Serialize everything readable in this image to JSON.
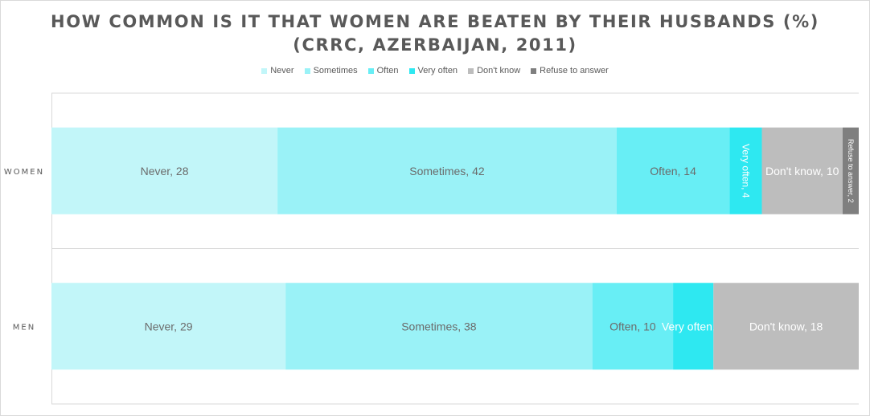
{
  "chart_data": {
    "type": "bar",
    "orientation": "horizontal",
    "stacked": true,
    "title_lines": [
      "HOW COMMON IS IT THAT WOMEN ARE BEATEN BY THEIR HUSBANDS (%)",
      "(CRRC, AZERBAIJAN, 2011)"
    ],
    "categories": [
      "WOMEN",
      "MEN"
    ],
    "series": [
      {
        "name": "Never",
        "color": "#c2f6f9",
        "values": [
          28,
          29
        ],
        "data_labels": [
          "Never, 28",
          "Never, 29"
        ]
      },
      {
        "name": "Sometimes",
        "color": "#9af2f7",
        "values": [
          42,
          38
        ],
        "data_labels": [
          "Sometimes, 42",
          "Sometimes, 38"
        ]
      },
      {
        "name": "Often",
        "color": "#68eef5",
        "values": [
          14,
          10
        ],
        "data_labels": [
          "Often, 14",
          "Often, 10"
        ]
      },
      {
        "name": "Very often",
        "color": "#2ee8f1",
        "values": [
          4,
          5
        ],
        "data_labels": [
          "Very often, 4",
          "Very often, 5"
        ]
      },
      {
        "name": "Don't know",
        "color": "#bdbdbd",
        "values": [
          10,
          18
        ],
        "data_labels": [
          "Don't know, 10",
          "Don't know, 18"
        ]
      },
      {
        "name": "Refuse to answer",
        "color": "#7f7f7f",
        "values": [
          2,
          0
        ],
        "data_labels": [
          "Refuse to answer, 2",
          ""
        ]
      }
    ],
    "xlim": [
      0,
      100
    ],
    "grid": true,
    "legend_position": "top"
  }
}
